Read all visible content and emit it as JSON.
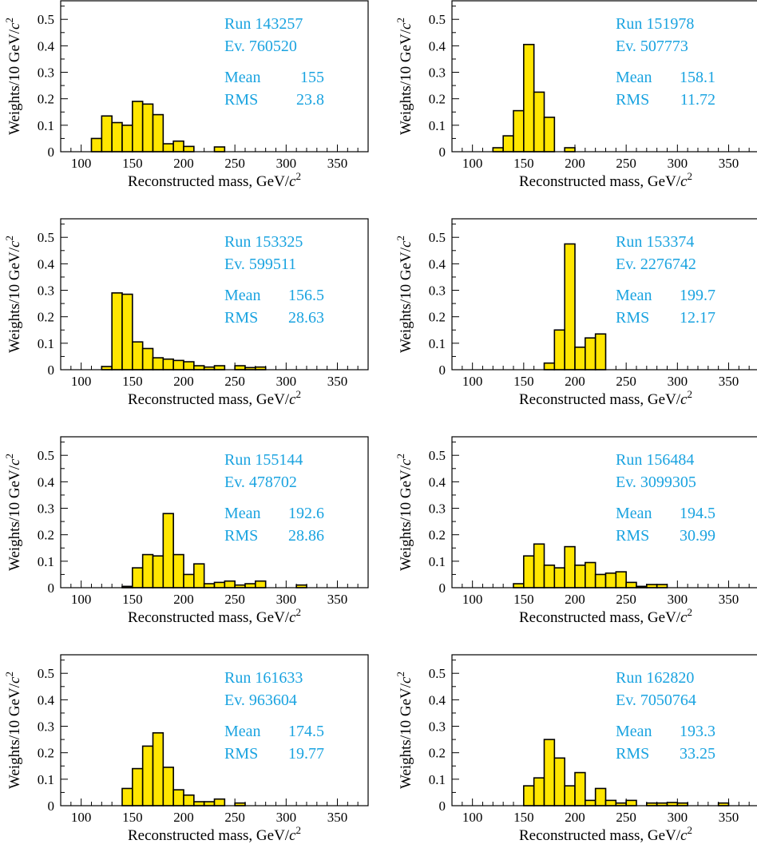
{
  "style": {
    "bar_fill": "#ffe600",
    "bar_stroke": "#000000",
    "info_color": "#1aa3e0",
    "frame_color": "#000000"
  },
  "chart_data": [
    {
      "type": "bar",
      "run_label": "Run 143257",
      "event_label": "Ev. 760520",
      "mean_label": "Mean",
      "mean_value": "155",
      "rms_label": "RMS",
      "rms_value": "23.8",
      "xlabel": "Reconstructed mass, GeV/",
      "xlabel_unit": "c",
      "xlabel_sup": "2",
      "ylabel": "Weights/10 GeV/",
      "ylabel_unit": "c",
      "ylabel_sup": "2",
      "xlim": [
        80,
        380
      ],
      "ylim": [
        0,
        0.57
      ],
      "xticks": [
        100,
        150,
        200,
        250,
        300,
        350
      ],
      "yticks": [
        0,
        0.1,
        0.2,
        0.3,
        0.4,
        0.5
      ],
      "bin_width": 10,
      "bins": [
        [
          110,
          0.05
        ],
        [
          120,
          0.135
        ],
        [
          130,
          0.11
        ],
        [
          140,
          0.1
        ],
        [
          150,
          0.19
        ],
        [
          160,
          0.18
        ],
        [
          170,
          0.14
        ],
        [
          180,
          0.03
        ],
        [
          190,
          0.04
        ],
        [
          200,
          0.02
        ],
        [
          230,
          0.018
        ]
      ]
    },
    {
      "type": "bar",
      "run_label": "Run 151978",
      "event_label": "Ev. 507773",
      "mean_label": "Mean",
      "mean_value": "158.1",
      "rms_label": "RMS",
      "rms_value": "11.72",
      "xlabel": "Reconstructed mass, GeV/",
      "xlabel_unit": "c",
      "xlabel_sup": "2",
      "ylabel": "Weights/10 GeV/",
      "ylabel_unit": "c",
      "ylabel_sup": "2",
      "xlim": [
        80,
        380
      ],
      "ylim": [
        0,
        0.57
      ],
      "xticks": [
        100,
        150,
        200,
        250,
        300,
        350
      ],
      "yticks": [
        0,
        0.1,
        0.2,
        0.3,
        0.4,
        0.5
      ],
      "bin_width": 10,
      "bins": [
        [
          120,
          0.015
        ],
        [
          130,
          0.06
        ],
        [
          140,
          0.155
        ],
        [
          150,
          0.405
        ],
        [
          160,
          0.225
        ],
        [
          170,
          0.13
        ],
        [
          190,
          0.015
        ]
      ]
    },
    {
      "type": "bar",
      "run_label": "Run 153325",
      "event_label": "Ev. 599511",
      "mean_label": "Mean",
      "mean_value": "156.5",
      "rms_label": "RMS",
      "rms_value": "28.63",
      "xlabel": "Reconstructed mass, GeV/",
      "xlabel_unit": "c",
      "xlabel_sup": "2",
      "ylabel": "Weights/10 GeV/",
      "ylabel_unit": "c",
      "ylabel_sup": "2",
      "xlim": [
        80,
        380
      ],
      "ylim": [
        0,
        0.57
      ],
      "xticks": [
        100,
        150,
        200,
        250,
        300,
        350
      ],
      "yticks": [
        0,
        0.1,
        0.2,
        0.3,
        0.4,
        0.5
      ],
      "bin_width": 10,
      "bins": [
        [
          120,
          0.012
        ],
        [
          130,
          0.29
        ],
        [
          140,
          0.285
        ],
        [
          150,
          0.105
        ],
        [
          160,
          0.08
        ],
        [
          170,
          0.045
        ],
        [
          180,
          0.04
        ],
        [
          190,
          0.035
        ],
        [
          200,
          0.03
        ],
        [
          210,
          0.015
        ],
        [
          220,
          0.01
        ],
        [
          230,
          0.015
        ],
        [
          250,
          0.015
        ],
        [
          260,
          0.008
        ],
        [
          270,
          0.01
        ]
      ]
    },
    {
      "type": "bar",
      "run_label": "Run 153374",
      "event_label": "Ev. 2276742",
      "mean_label": "Mean",
      "mean_value": "199.7",
      "rms_label": "RMS",
      "rms_value": "12.17",
      "xlabel": "Reconstructed mass, GeV/",
      "xlabel_unit": "c",
      "xlabel_sup": "2",
      "ylabel": "Weights/10 GeV/",
      "ylabel_unit": "c",
      "ylabel_sup": "2",
      "xlim": [
        80,
        380
      ],
      "ylim": [
        0,
        0.57
      ],
      "xticks": [
        100,
        150,
        200,
        250,
        300,
        350
      ],
      "yticks": [
        0,
        0.1,
        0.2,
        0.3,
        0.4,
        0.5
      ],
      "bin_width": 10,
      "bins": [
        [
          170,
          0.025
        ],
        [
          180,
          0.15
        ],
        [
          190,
          0.475
        ],
        [
          200,
          0.085
        ],
        [
          210,
          0.12
        ],
        [
          220,
          0.135
        ]
      ]
    },
    {
      "type": "bar",
      "run_label": "Run 155144",
      "event_label": "Ev. 478702",
      "mean_label": "Mean",
      "mean_value": "192.6",
      "rms_label": "RMS",
      "rms_value": "28.86",
      "xlabel": "Reconstructed mass, GeV/",
      "xlabel_unit": "c",
      "xlabel_sup": "2",
      "ylabel": "Weights/10 GeV/",
      "ylabel_unit": "c",
      "ylabel_sup": "2",
      "xlim": [
        80,
        380
      ],
      "ylim": [
        0,
        0.57
      ],
      "xticks": [
        100,
        150,
        200,
        250,
        300,
        350
      ],
      "yticks": [
        0,
        0.1,
        0.2,
        0.3,
        0.4,
        0.5
      ],
      "bin_width": 10,
      "bins": [
        [
          140,
          0.005
        ],
        [
          150,
          0.075
        ],
        [
          160,
          0.125
        ],
        [
          170,
          0.12
        ],
        [
          180,
          0.28
        ],
        [
          190,
          0.125
        ],
        [
          200,
          0.05
        ],
        [
          210,
          0.09
        ],
        [
          220,
          0.015
        ],
        [
          230,
          0.02
        ],
        [
          240,
          0.025
        ],
        [
          250,
          0.01
        ],
        [
          260,
          0.015
        ],
        [
          270,
          0.025
        ],
        [
          310,
          0.01
        ]
      ]
    },
    {
      "type": "bar",
      "run_label": "Run 156484",
      "event_label": "Ev. 3099305",
      "mean_label": "Mean",
      "mean_value": "194.5",
      "rms_label": "RMS",
      "rms_value": "30.99",
      "xlabel": "Reconstructed mass, GeV/",
      "xlabel_unit": "c",
      "xlabel_sup": "2",
      "ylabel": "Weights/10 GeV/",
      "ylabel_unit": "c",
      "ylabel_sup": "2",
      "xlim": [
        80,
        380
      ],
      "ylim": [
        0,
        0.57
      ],
      "xticks": [
        100,
        150,
        200,
        250,
        300,
        350
      ],
      "yticks": [
        0,
        0.1,
        0.2,
        0.3,
        0.4,
        0.5
      ],
      "bin_width": 10,
      "bins": [
        [
          140,
          0.015
        ],
        [
          150,
          0.12
        ],
        [
          160,
          0.165
        ],
        [
          170,
          0.085
        ],
        [
          180,
          0.075
        ],
        [
          190,
          0.155
        ],
        [
          200,
          0.085
        ],
        [
          210,
          0.095
        ],
        [
          220,
          0.05
        ],
        [
          230,
          0.055
        ],
        [
          240,
          0.06
        ],
        [
          250,
          0.02
        ],
        [
          260,
          0.005
        ],
        [
          270,
          0.012
        ],
        [
          280,
          0.012
        ]
      ]
    },
    {
      "type": "bar",
      "run_label": "Run 161633",
      "event_label": "Ev. 963604",
      "mean_label": "Mean",
      "mean_value": "174.5",
      "rms_label": "RMS",
      "rms_value": "19.77",
      "xlabel": "Reconstructed mass, GeV/",
      "xlabel_unit": "c",
      "xlabel_sup": "2",
      "ylabel": "Weights/10 GeV/",
      "ylabel_unit": "c",
      "ylabel_sup": "2",
      "xlim": [
        80,
        380
      ],
      "ylim": [
        0,
        0.57
      ],
      "xticks": [
        100,
        150,
        200,
        250,
        300,
        350
      ],
      "yticks": [
        0,
        0.1,
        0.2,
        0.3,
        0.4,
        0.5
      ],
      "bin_width": 10,
      "bins": [
        [
          140,
          0.065
        ],
        [
          150,
          0.14
        ],
        [
          160,
          0.225
        ],
        [
          170,
          0.275
        ],
        [
          180,
          0.145
        ],
        [
          190,
          0.06
        ],
        [
          200,
          0.04
        ],
        [
          210,
          0.015
        ],
        [
          220,
          0.015
        ],
        [
          230,
          0.025
        ],
        [
          250,
          0.01
        ]
      ]
    },
    {
      "type": "bar",
      "run_label": "Run 162820",
      "event_label": "Ev. 7050764",
      "mean_label": "Mean",
      "mean_value": "193.3",
      "rms_label": "RMS",
      "rms_value": "33.25",
      "xlabel": "Reconstructed mass, GeV/",
      "xlabel_unit": "c",
      "xlabel_sup": "2",
      "ylabel": "Weights/10 GeV/",
      "ylabel_unit": "c",
      "ylabel_sup": "2",
      "xlim": [
        80,
        380
      ],
      "ylim": [
        0,
        0.57
      ],
      "xticks": [
        100,
        150,
        200,
        250,
        300,
        350
      ],
      "yticks": [
        0,
        0.1,
        0.2,
        0.3,
        0.4,
        0.5
      ],
      "bin_width": 10,
      "bins": [
        [
          150,
          0.075
        ],
        [
          160,
          0.105
        ],
        [
          170,
          0.25
        ],
        [
          180,
          0.18
        ],
        [
          190,
          0.075
        ],
        [
          200,
          0.125
        ],
        [
          210,
          0.02
        ],
        [
          220,
          0.065
        ],
        [
          230,
          0.02
        ],
        [
          240,
          0.01
        ],
        [
          250,
          0.02
        ],
        [
          270,
          0.01
        ],
        [
          280,
          0.01
        ],
        [
          290,
          0.012
        ],
        [
          300,
          0.01
        ],
        [
          340,
          0.01
        ]
      ]
    }
  ]
}
